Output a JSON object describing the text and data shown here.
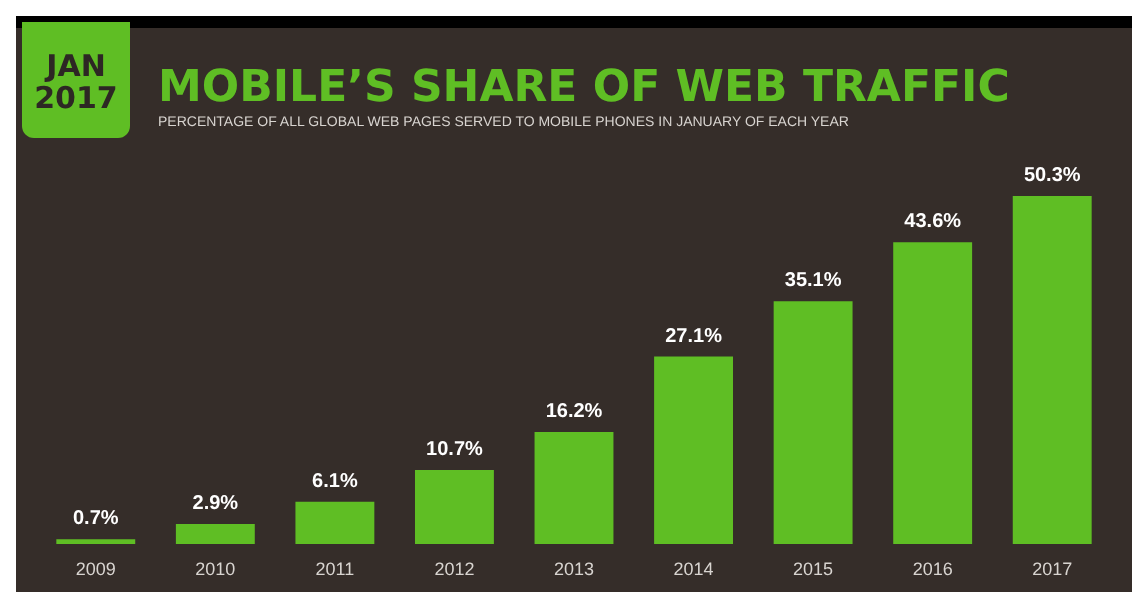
{
  "chart_data": {
    "type": "bar",
    "title": "MOBILE’S SHARE OF WEB TRAFFIC",
    "subtitle": "PERCENTAGE OF ALL GLOBAL WEB PAGES SERVED TO MOBILE PHONES IN JANUARY OF EACH YEAR",
    "annotations": [
      "JAN\n2017"
    ],
    "categories": [
      "2009",
      "2010",
      "2011",
      "2012",
      "2013",
      "2014",
      "2015",
      "2016",
      "2017"
    ],
    "values": [
      0.7,
      2.9,
      6.1,
      10.7,
      16.2,
      27.1,
      35.1,
      43.6,
      50.3
    ],
    "value_labels": [
      "0.7%",
      "2.9%",
      "6.1%",
      "10.7%",
      "16.2%",
      "27.1%",
      "35.1%",
      "43.6%",
      "50.3%"
    ],
    "color": "#5fbe24",
    "tick_labels": "x"
  }
}
